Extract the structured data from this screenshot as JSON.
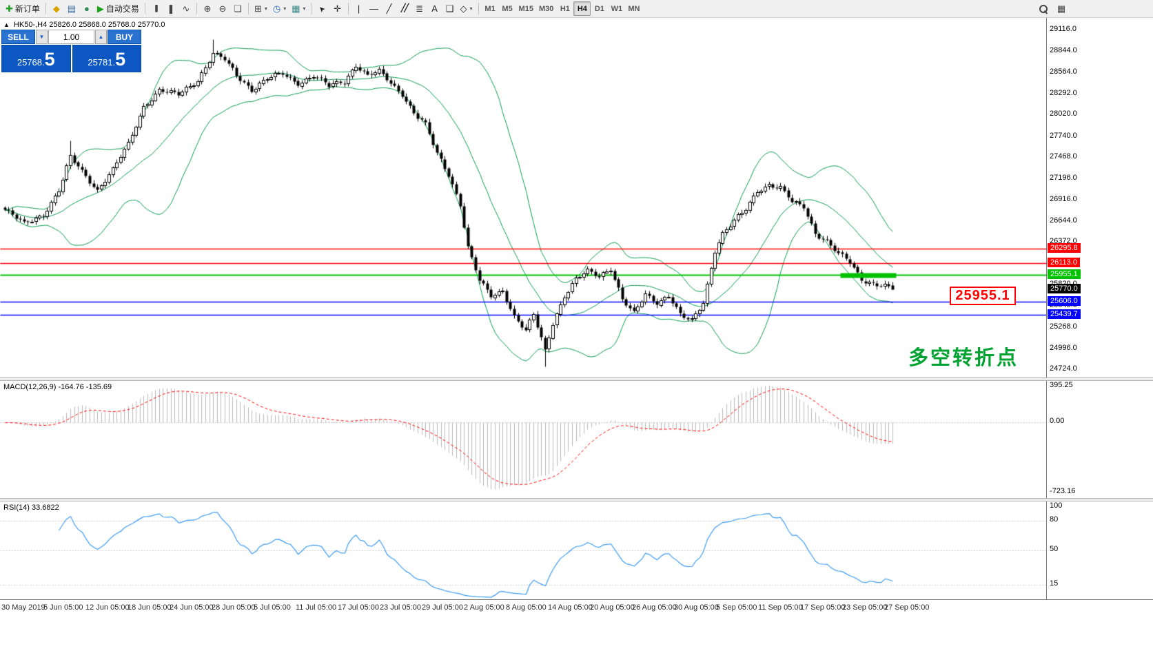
{
  "toolbar": {
    "groups": [
      [
        {
          "name": "new-order-button",
          "icon": "new-order",
          "label": "新订单"
        }
      ],
      [
        {
          "name": "market-watch-button",
          "icon": "market-watch"
        },
        {
          "name": "data-window-button",
          "icon": "data-window"
        },
        {
          "name": "navigator-button",
          "icon": "navigator"
        },
        {
          "name": "auto-trading-button",
          "icon": "auto-trading",
          "label": "自动交易"
        }
      ],
      [
        {
          "name": "bar-chart-button",
          "icon": "bar-chart"
        },
        {
          "name": "candlestick-chart-button",
          "icon": "candlestick-chart"
        },
        {
          "name": "line-chart-button",
          "icon": "line-chart"
        }
      ],
      [
        {
          "name": "zoom-in-button",
          "icon": "zoom-in"
        },
        {
          "name": "zoom-out-button",
          "icon": "zoom-out"
        },
        {
          "name": "tile-windows-button",
          "icon": "tile-windows"
        }
      ],
      [
        {
          "name": "new-chart-button",
          "icon": "new-chart",
          "dropdown": true
        },
        {
          "name": "period-button",
          "icon": "clock",
          "dropdown": true
        },
        {
          "name": "template-button",
          "icon": "template",
          "dropdown": true
        }
      ],
      [
        {
          "name": "cursor-button",
          "icon": "cursor"
        },
        {
          "name": "crosshair-button",
          "icon": "crosshair"
        }
      ],
      [
        {
          "name": "vertical-line-button",
          "icon": "vertical-line"
        },
        {
          "name": "horizontal-line-button",
          "icon": "horizontal-line"
        },
        {
          "name": "trendline-button",
          "icon": "trendline"
        },
        {
          "name": "equidistant-channel-button",
          "icon": "channel"
        },
        {
          "name": "fibonacci-button",
          "icon": "fibonacci"
        },
        {
          "name": "text-tool-button",
          "icon": "text-tool"
        },
        {
          "name": "label-tool-button",
          "icon": "label-tool"
        },
        {
          "name": "shapes-button",
          "icon": "shapes",
          "dropdown": true
        }
      ]
    ],
    "timeframes": [
      {
        "label": "M1",
        "active": false
      },
      {
        "label": "M5",
        "active": false
      },
      {
        "label": "M15",
        "active": false
      },
      {
        "label": "M30",
        "active": false
      },
      {
        "label": "H1",
        "active": false
      },
      {
        "label": "H4",
        "active": true
      },
      {
        "label": "D1",
        "active": false
      },
      {
        "label": "W1",
        "active": false
      },
      {
        "label": "MN",
        "active": false
      }
    ],
    "right_buttons": [
      {
        "name": "search-button",
        "icon": "search"
      },
      {
        "name": "chart-windows-button",
        "icon": "chart-window"
      }
    ]
  },
  "chart": {
    "collapse_icon": "▲",
    "symbol_info": "HK50-,H4   25826.0 25868.0 25768.0 25770.0",
    "callout_text": "25955.1",
    "callout_color": "#ff0000",
    "annotation_text": "多空转折点",
    "annotation_color": "#00a230"
  },
  "trade_panel": {
    "sell_label": "SELL",
    "buy_label": "BUY",
    "volume": "1.00",
    "volume_down_icon": "▼",
    "volume_up_icon": "▲",
    "sell_price_main": "25768.",
    "sell_price_big": "5",
    "buy_price_main": "25781.",
    "buy_price_big": "5",
    "button_color": "#2a72cf",
    "price_bg_color": "#0d57c2"
  },
  "chart_data": {
    "type": "candlestick",
    "symbol": "HK50-",
    "timeframe": "H4",
    "ohlc_current": {
      "open": 25826.0,
      "high": 25868.0,
      "low": 25768.0,
      "close": 25770.0
    },
    "bars": 231,
    "price_axis": {
      "min_visible": 24630,
      "max_visible": 29280,
      "ticks": [
        "29116.0",
        "28844.0",
        "28564.0",
        "28292.0",
        "28020.0",
        "27740.0",
        "27468.0",
        "27196.0",
        "26916.0",
        "26644.0",
        "26372.0",
        "25820.0",
        "25548.0",
        "25268.0",
        "24996.0",
        "24724.0"
      ]
    },
    "hlines": [
      {
        "price": 26295.8,
        "label": "26295.8",
        "color": "#ff0000",
        "width": 1.5
      },
      {
        "price": 26113.0,
        "label": "26113.0",
        "color": "#ff0000",
        "width": 1.5
      },
      {
        "price": 25955.1,
        "label": "25955.1",
        "color": "#00c000",
        "width": 2,
        "thick_segment": {
          "from_bar": 217,
          "to_bar": 230
        }
      },
      {
        "price": 25606.0,
        "label": "25606.0",
        "color": "#0000ff",
        "width": 1.5
      },
      {
        "price": 25439.7,
        "label": "25439.7",
        "color": "#0000ff",
        "width": 1.5
      }
    ],
    "current_price": {
      "price": 25770.0,
      "label": "25770.0",
      "bg": "#000000"
    },
    "bollinger": {
      "period": 20,
      "deviation": 2,
      "color": "#089850"
    },
    "close_path": [
      [
        0,
        26800
      ],
      [
        5,
        26620
      ],
      [
        10,
        26740
      ],
      [
        14,
        27050
      ],
      [
        17,
        27480
      ],
      [
        20,
        27300
      ],
      [
        24,
        27060
      ],
      [
        28,
        27320
      ],
      [
        32,
        27650
      ],
      [
        36,
        28140
      ],
      [
        40,
        28350
      ],
      [
        45,
        28290
      ],
      [
        50,
        28480
      ],
      [
        54,
        28820
      ],
      [
        57,
        28740
      ],
      [
        60,
        28540
      ],
      [
        64,
        28360
      ],
      [
        68,
        28500
      ],
      [
        72,
        28560
      ],
      [
        76,
        28440
      ],
      [
        80,
        28540
      ],
      [
        84,
        28400
      ],
      [
        88,
        28460
      ],
      [
        91,
        28680
      ],
      [
        94,
        28540
      ],
      [
        97,
        28590
      ],
      [
        100,
        28440
      ],
      [
        103,
        28300
      ],
      [
        106,
        28060
      ],
      [
        109,
        27900
      ],
      [
        112,
        27520
      ],
      [
        115,
        27260
      ],
      [
        118,
        26880
      ],
      [
        120,
        26320
      ],
      [
        123,
        25880
      ],
      [
        126,
        25680
      ],
      [
        129,
        25760
      ],
      [
        132,
        25430
      ],
      [
        135,
        25240
      ],
      [
        137,
        25440
      ],
      [
        140,
        24980
      ],
      [
        142,
        25340
      ],
      [
        145,
        25690
      ],
      [
        148,
        25900
      ],
      [
        151,
        26000
      ],
      [
        154,
        25940
      ],
      [
        157,
        26050
      ],
      [
        160,
        25650
      ],
      [
        163,
        25460
      ],
      [
        166,
        25700
      ],
      [
        169,
        25600
      ],
      [
        172,
        25700
      ],
      [
        175,
        25440
      ],
      [
        178,
        25360
      ],
      [
        181,
        25600
      ],
      [
        184,
        26280
      ],
      [
        186,
        26500
      ],
      [
        189,
        26650
      ],
      [
        192,
        26800
      ],
      [
        195,
        27050
      ],
      [
        198,
        27130
      ],
      [
        201,
        27090
      ],
      [
        204,
        26900
      ],
      [
        207,
        26840
      ],
      [
        210,
        26500
      ],
      [
        213,
        26400
      ],
      [
        216,
        26230
      ],
      [
        219,
        26120
      ],
      [
        222,
        25900
      ],
      [
        225,
        25850
      ],
      [
        228,
        25820
      ],
      [
        230,
        25770
      ]
    ],
    "spikes": [
      {
        "bar": 17,
        "high": 27690
      },
      {
        "bar": 54,
        "high": 29000
      },
      {
        "bar": 140,
        "low": 24770
      }
    ],
    "macd": {
      "label": "MACD(12,26,9) -164.76 -135.69",
      "params": [
        12,
        26,
        9
      ],
      "values": [
        -164.76,
        -135.69
      ],
      "axis_ticks": [
        "395.25",
        "0.00",
        "-723.16"
      ],
      "range": [
        -723.16,
        395.25
      ],
      "histogram_color": "#b8b8b8",
      "signal_color": "#ff0000"
    },
    "rsi": {
      "label": "RSI(14) 33.6822",
      "period": 14,
      "value": 33.6822,
      "axis_ticks": [
        "100",
        "80",
        "50",
        "15"
      ],
      "levels": [
        80,
        50,
        15
      ],
      "range": [
        0,
        100
      ],
      "color": "#3b9af0"
    },
    "time_axis": [
      "30 May 2019",
      "5 Jun 05:00",
      "12 Jun 05:00",
      "18 Jun 05:00",
      "24 Jun 05:00",
      "28 Jun 05:00",
      "5 Jul 05:00",
      "11 Jul 05:00",
      "17 Jul 05:00",
      "23 Jul 05:00",
      "29 Jul 05:00",
      "2 Aug 05:00",
      "8 Aug 05:00",
      "14 Aug 05:00",
      "20 Aug 05:00",
      "26 Aug 05:00",
      "30 Aug 05:00",
      "5 Sep 05:00",
      "11 Sep 05:00",
      "17 Sep 05:00",
      "23 Sep 05:00",
      "27 Sep 05:00"
    ],
    "annotations": [
      {
        "type": "callout",
        "text": "25955.1",
        "color": "#ff0000"
      },
      {
        "type": "text",
        "text": "多空转折点",
        "color": "#00a230"
      }
    ]
  }
}
